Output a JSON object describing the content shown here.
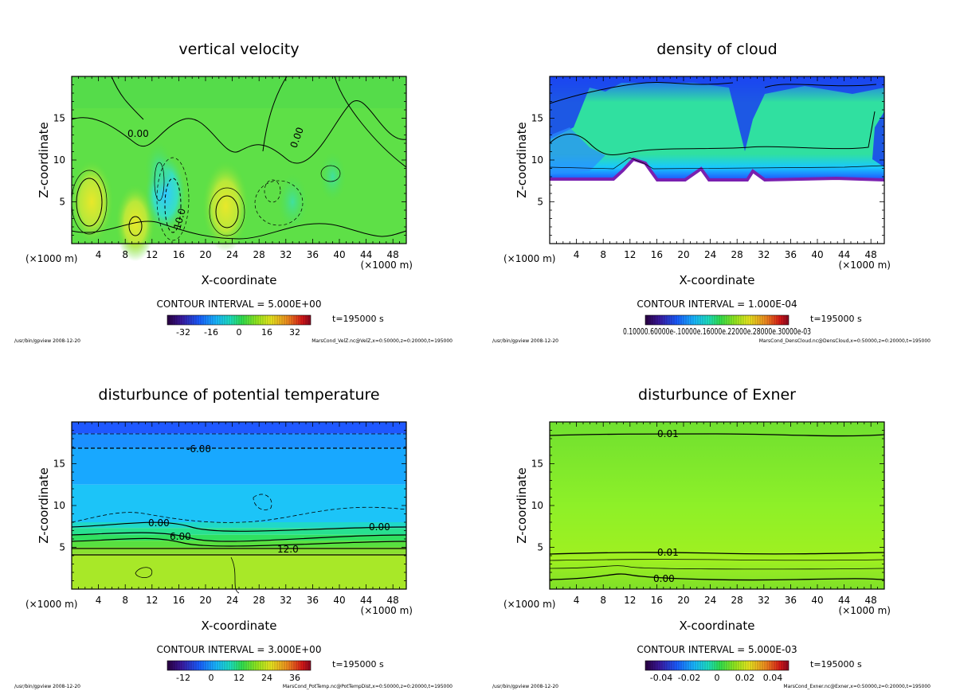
{
  "chart_data": [
    {
      "type": "heatmap",
      "title": "vertical velocity",
      "xlabel": "X-coordinate",
      "ylabel": "Z-coordinate",
      "x_unit": "(×1000 m)",
      "xlim": [
        0,
        50
      ],
      "ylim": [
        0,
        20
      ],
      "xticks": [
        4,
        8,
        12,
        16,
        20,
        24,
        28,
        32,
        36,
        40,
        44,
        48
      ],
      "yticks": [
        5,
        10,
        15
      ],
      "contour_interval": "CONTOUR INTERVAL = 5.000E+00",
      "time_label": "t=195000 s",
      "colorbar_ticks": [
        "-32",
        "-16",
        "0",
        "16",
        "32"
      ],
      "contour_labels": [
        "0.00",
        "0.00",
        "10.0"
      ],
      "footer_left": "/usr/bin/gpview  2008-12-20",
      "footer_right": "MarsCond_VelZ.nc@VelZ,x=0:50000,z=0:20000,t=195000",
      "features": [
        {
          "x": 3,
          "z": 5,
          "value": 14
        },
        {
          "x": 9.5,
          "z": 2.5,
          "value": 12
        },
        {
          "x": 14,
          "z": 6,
          "value": -12
        },
        {
          "x": 23,
          "z": 4.5,
          "value": 16
        },
        {
          "x": 33,
          "z": 5,
          "value": -6
        },
        {
          "x": 13,
          "z": 9,
          "value": 5
        },
        {
          "x": 39,
          "z": 8,
          "value": 4
        }
      ]
    },
    {
      "type": "heatmap",
      "title": "density of cloud",
      "xlabel": "X-coordinate",
      "ylabel": "Z-coordinate",
      "x_unit": "(×1000 m)",
      "xlim": [
        0,
        50
      ],
      "ylim": [
        0,
        20
      ],
      "xticks": [
        4,
        8,
        12,
        16,
        20,
        24,
        28,
        32,
        36,
        40,
        44,
        48
      ],
      "yticks": [
        5,
        10,
        15
      ],
      "contour_interval": "CONTOUR INTERVAL = 1.000E-04",
      "time_label": "t=195000 s",
      "colorbar_ticks": [
        "0.10000",
        "0.60000",
        "0.10000E-03",
        "0.16000E-03",
        "0.22000E-03",
        "0.28000E-03",
        "0.30000E-03"
      ],
      "colorbar_tick_text": "0.10000.60000e-.10000e.16000e.22000e.28000e.30000e-03",
      "footer_left": "/usr/bin/gpview  2008-12-20",
      "footer_right": "MarsCond_DensCloud.nc@DensCloud,x=0:50000,z=0:20000,t=195000",
      "cloud_base_z": 7.8,
      "cloud_top_z": 19.5
    },
    {
      "type": "heatmap",
      "title": "disturbunce of potential temperature",
      "xlabel": "X-coordinate",
      "ylabel": "Z-coordinate",
      "x_unit": "(×1000 m)",
      "xlim": [
        0,
        50
      ],
      "ylim": [
        0,
        20
      ],
      "xticks": [
        4,
        8,
        12,
        16,
        20,
        24,
        28,
        32,
        36,
        40,
        44,
        48
      ],
      "yticks": [
        5,
        10,
        15
      ],
      "contour_interval": "CONTOUR INTERVAL = 3.000E+00",
      "time_label": "t=195000 s",
      "colorbar_ticks": [
        "-12",
        "0",
        "12",
        "24",
        "36"
      ],
      "contour_labels": [
        "-6.00",
        "0.00",
        "0.00",
        "6.00",
        "12.0"
      ],
      "footer_left": "/usr/bin/gpview  2008-12-20",
      "footer_right": "MarsCond_PotTemp.nc@PotTempDist,x=0:50000,z=0:20000,t=195000",
      "layers": [
        {
          "z_top": 20,
          "z_bottom": 18.6,
          "value": -9
        },
        {
          "z_top": 18.6,
          "z_bottom": 16.9,
          "value": -8
        },
        {
          "z_top": 16.9,
          "z_bottom": 12.5,
          "value": -6
        },
        {
          "z_top": 12.5,
          "z_bottom": 8,
          "value": -3
        },
        {
          "z_top": 8,
          "z_bottom": 7.3,
          "value": 0
        },
        {
          "z_top": 7.3,
          "z_bottom": 6.5,
          "value": 3
        },
        {
          "z_top": 6.5,
          "z_bottom": 5.8,
          "value": 6
        },
        {
          "z_top": 5.8,
          "z_bottom": 5.0,
          "value": 9
        },
        {
          "z_top": 5.0,
          "z_bottom": 4.2,
          "value": 12
        },
        {
          "z_top": 4.2,
          "z_bottom": 0,
          "value": 15
        }
      ]
    },
    {
      "type": "heatmap",
      "title": "disturbunce of Exner",
      "xlabel": "X-coordinate",
      "ylabel": "Z-coordinate",
      "x_unit": "(×1000 m)",
      "xlim": [
        0,
        50
      ],
      "ylim": [
        0,
        20
      ],
      "xticks": [
        4,
        8,
        12,
        16,
        20,
        24,
        28,
        32,
        36,
        40,
        44,
        48
      ],
      "yticks": [
        5,
        10,
        15
      ],
      "contour_interval": "CONTOUR INTERVAL = 5.000E-03",
      "time_label": "t=195000 s",
      "colorbar_ticks": [
        "-0.04",
        "-0.02",
        "0",
        "0.02",
        "0.04"
      ],
      "contour_labels": [
        "0.01",
        "0.01",
        "0.00"
      ],
      "footer_left": "/usr/bin/gpview  2008-12-20",
      "footer_right": "MarsCond_Exner.nc@Exner,x=0:50000,z=0:20000,t=195000",
      "contours_z": [
        18.6,
        4.2,
        3.2,
        2.3,
        1.2
      ]
    }
  ]
}
